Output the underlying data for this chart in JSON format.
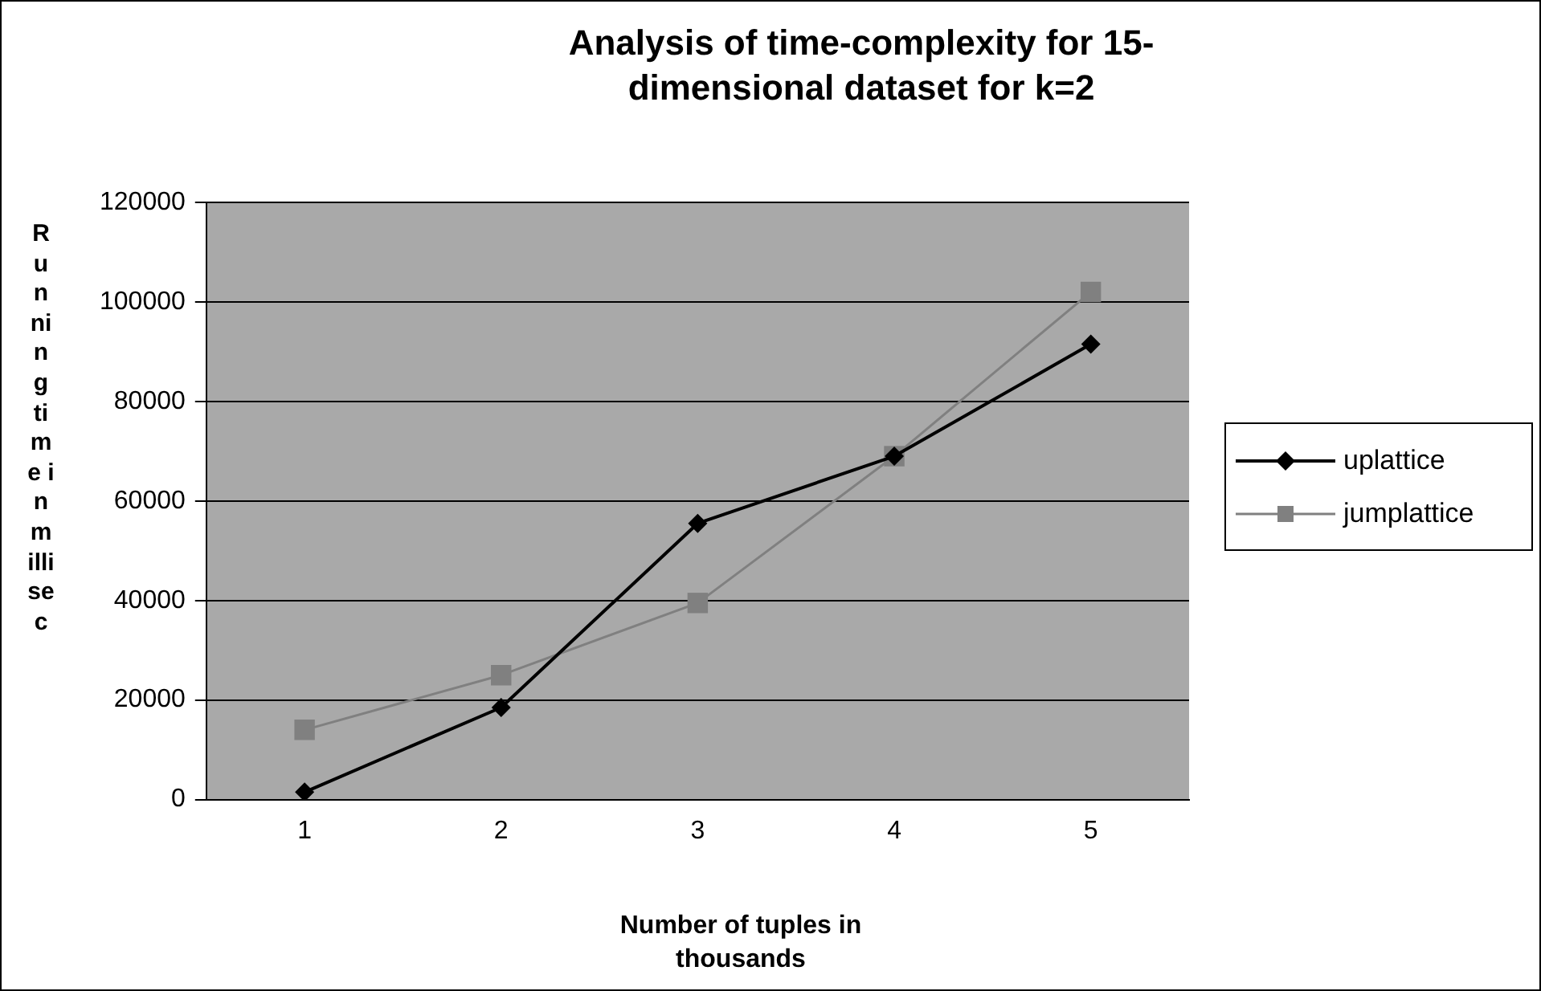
{
  "chart_data": {
    "type": "line",
    "title": "Analysis of time-complexity for 15-dimensional dataset for k=2",
    "xlabel": "Number of tuples in thousands",
    "ylabel": "Running time in millisec",
    "categories": [
      "1",
      "2",
      "3",
      "4",
      "5"
    ],
    "series": [
      {
        "name": "uplattice",
        "color": "#000000",
        "marker": "diamond",
        "values": [
          1500,
          18500,
          55500,
          69000,
          91500
        ]
      },
      {
        "name": "jumplattice",
        "color": "#808080",
        "marker": "square",
        "values": [
          14000,
          25000,
          39500,
          69000,
          102000
        ]
      }
    ],
    "ylim": [
      0,
      120000
    ],
    "yticks": [
      0,
      20000,
      40000,
      60000,
      80000,
      100000,
      120000
    ],
    "grid": "y",
    "legend": "right"
  }
}
